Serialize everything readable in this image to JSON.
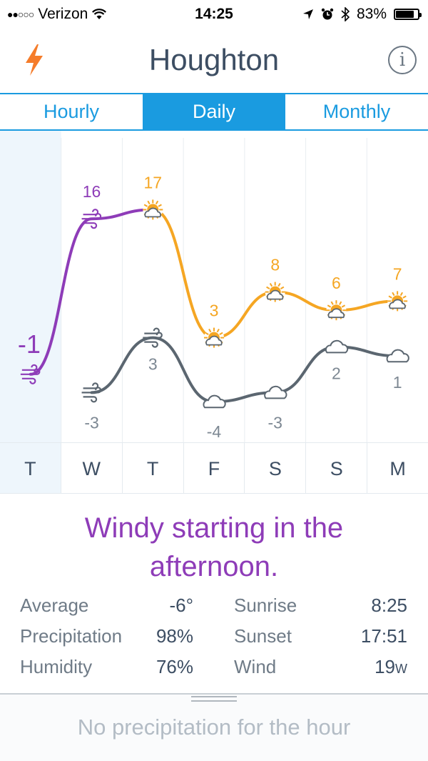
{
  "status_bar": {
    "carrier": "Verizon",
    "time": "14:25",
    "battery": "83%",
    "battery_level": 0.83
  },
  "header": {
    "title": "Houghton",
    "left_icon": "lightning-bolt-icon",
    "right_icon": "info-icon",
    "info_glyph": "i"
  },
  "tabs": [
    {
      "label": "Hourly",
      "active": false
    },
    {
      "label": "Daily",
      "active": true
    },
    {
      "label": "Monthly",
      "active": false
    }
  ],
  "colors": {
    "accent": "#1a9be0",
    "high_line": "#f5a623",
    "low_line": "#5b6670",
    "today_line": "#8e3cb8",
    "summary_text": "#8e3cb8"
  },
  "chart_data": {
    "type": "line",
    "categories": [
      "T",
      "W",
      "T",
      "F",
      "S",
      "S",
      "M"
    ],
    "series": [
      {
        "values": [
          -1,
          16,
          17,
          3,
          8,
          6,
          7
        ],
        "icons": [
          "wind-icon",
          "wind-icon",
          "sun-cloud-icon",
          "sun-cloud-icon",
          "sun-cloud-icon",
          "sun-cloud-icon",
          "sun-cloud-icon"
        ]
      },
      {
        "values": [
          null,
          -3,
          3,
          -4,
          -3,
          2,
          1
        ],
        "icons": [
          null,
          "wind-icon",
          "wind-icon",
          "cloud-icon",
          "cloud-icon",
          "cloud-icon",
          "cloud-icon"
        ]
      }
    ],
    "value_labels": {
      "high": [
        "-1",
        "16",
        "17",
        "3",
        "8",
        "6",
        "7"
      ],
      "low": [
        "",
        "-3",
        "3",
        "-4",
        "-3",
        "2",
        "1"
      ]
    },
    "selected_index": 0
  },
  "summary": "Windy starting in the afternoon.",
  "stats": {
    "average_label": "Average",
    "average_value": "-6°",
    "precip_label": "Precipitation",
    "precip_value": "98%",
    "humidity_label": "Humidity",
    "humidity_value": "76%",
    "sunrise_label": "Sunrise",
    "sunrise_value": "8:25",
    "sunset_label": "Sunset",
    "sunset_value": "17:51",
    "wind_label": "Wind",
    "wind_value": "19",
    "wind_dir": "W"
  },
  "bottom": {
    "precip_message": "No precipitation for the hour"
  }
}
